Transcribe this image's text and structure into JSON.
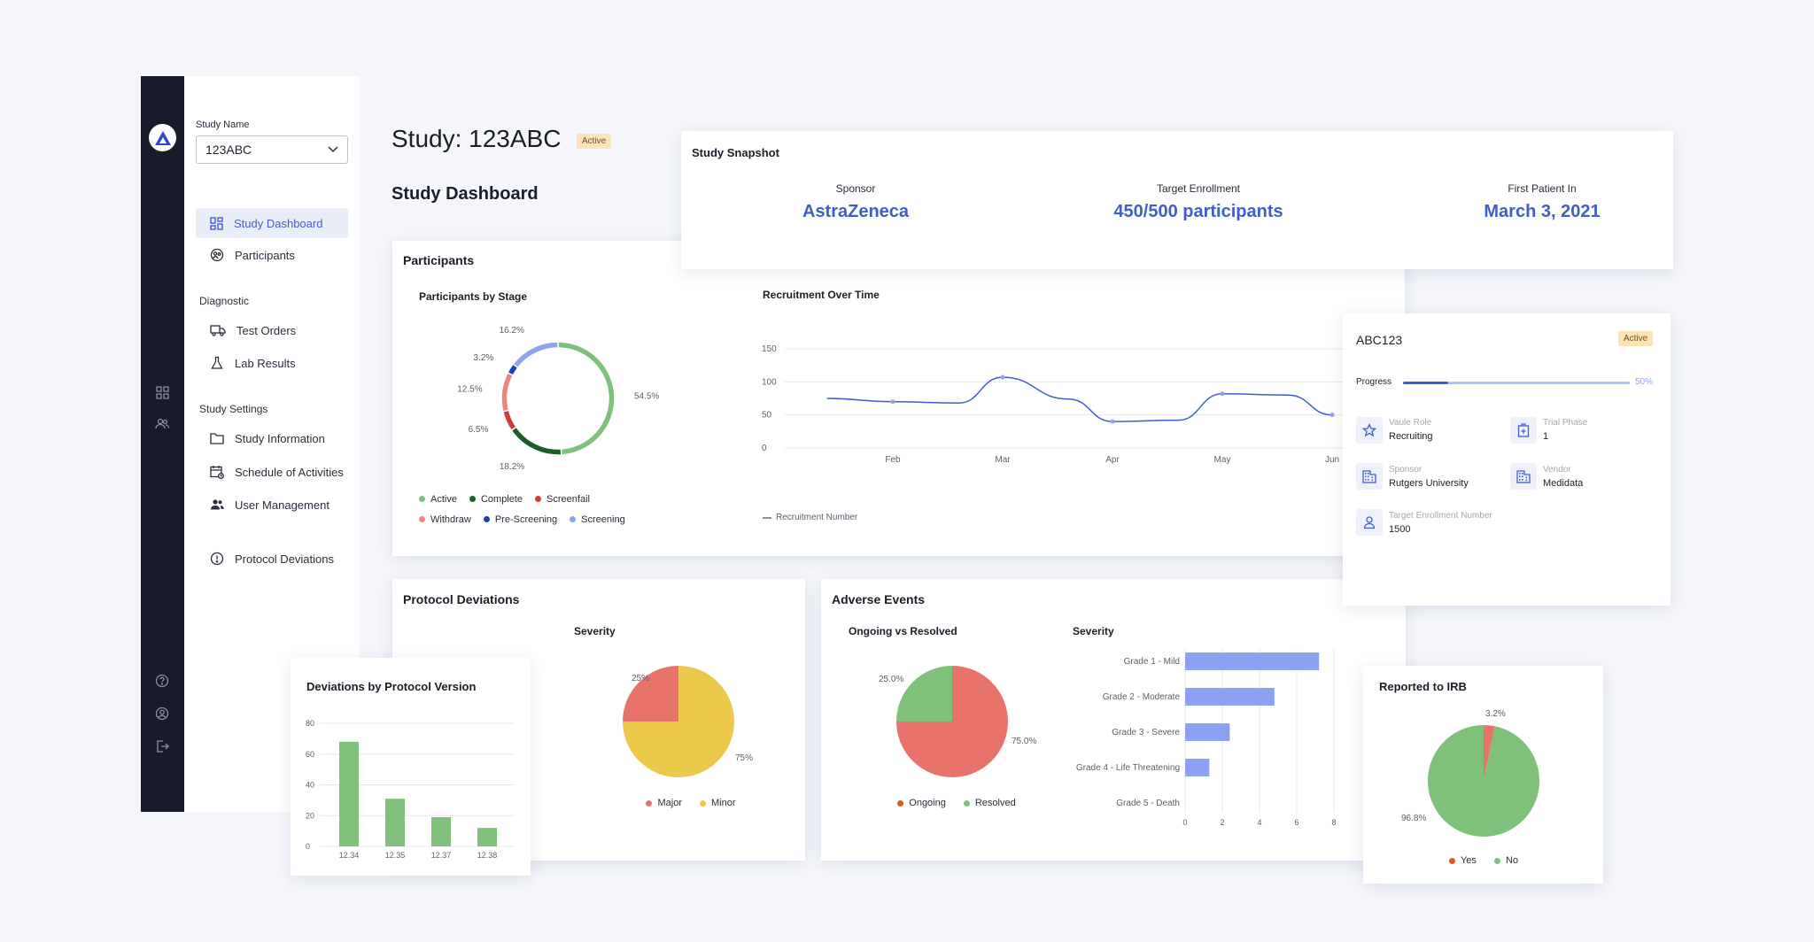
{
  "sidebar": {
    "study_name_label": "Study Name",
    "study_select_value": "123ABC",
    "nav_main": [
      {
        "label": "Study Dashboard",
        "icon": "dashboard-icon"
      },
      {
        "label": "Participants",
        "icon": "participants-icon"
      }
    ],
    "diagnostic_label": "Diagnostic",
    "nav_diagnostic": [
      {
        "label": "Test Orders",
        "icon": "truck-icon"
      },
      {
        "label": "Lab Results",
        "icon": "flask-icon"
      }
    ],
    "settings_label": "Study Settings",
    "nav_settings": [
      {
        "label": "Study Information",
        "icon": "folder-icon"
      },
      {
        "label": "Schedule of Activities",
        "icon": "calendar-icon"
      },
      {
        "label": "User Management",
        "icon": "users-icon"
      }
    ],
    "protocol_deviations": "Protocol Deviations"
  },
  "header": {
    "title": "Study: 123ABC",
    "status": "Active",
    "dashboard_title": "Study Dashboard"
  },
  "snapshot": {
    "title": "Study Snapshot",
    "items": [
      {
        "label": "Sponsor",
        "value": "AstraZeneca"
      },
      {
        "label": "Target Enrollment",
        "value": "450/500 participants"
      },
      {
        "label": "First Patient In",
        "value": "March 3, 2021"
      }
    ]
  },
  "participants": {
    "title": "Participants",
    "by_stage_title": "Participants by Stage",
    "recruitment_title": "Recruitment Over Time",
    "recruitment_legend": "Recruitment Number"
  },
  "study_card": {
    "title": "ABC123",
    "status": "Active",
    "progress_label": "Progress",
    "progress_value": "50%",
    "progress_fraction": 0.5,
    "fields": [
      {
        "key": "Vaule Role",
        "value": "Recruiting",
        "icon": "star-icon"
      },
      {
        "key": "Trial Phase",
        "value": "1",
        "icon": "medical-kit-icon"
      },
      {
        "key": "Sponsor",
        "value": "Rutgers University",
        "icon": "building-icon"
      },
      {
        "key": "Vendor",
        "value": "Medidata",
        "icon": "building-icon"
      },
      {
        "key": "Target Enrollment Number",
        "value": "1500",
        "icon": "person-icon"
      }
    ]
  },
  "protocol_deviations": {
    "title": "Protocol Deviations",
    "severity_title": "Severity"
  },
  "deviations_by_version": {
    "title": "Deviations by Protocol Version"
  },
  "adverse_events": {
    "title": "Adverse Events",
    "ongoing_title": "Ongoing vs Resolved",
    "severity_title": "Severity"
  },
  "irb": {
    "title": "Reported to IRB"
  },
  "colors": {
    "accent": "#3f5ec9",
    "green": "#7fc17a",
    "red": "#e8736a",
    "yellow": "#ebc94b",
    "bar_blue": "#8aa2f0",
    "dark_green": "#1c5e27",
    "navy": "#1d3dbf",
    "salmon": "#e98680",
    "light_blue": "#8ea4ee",
    "crimson": "#cf3e3e"
  },
  "chart_data": [
    {
      "type": "pie",
      "title": "Participants by Stage",
      "donut": true,
      "labels": [
        "Active",
        "Complete",
        "Screenfail",
        "Withdraw",
        "Pre-Screening",
        "Screening"
      ],
      "values": [
        54.5,
        18.2,
        6.5,
        12.5,
        3.2,
        16.2
      ],
      "value_labels": [
        "54.5%",
        "18.2%",
        "6.5%",
        "12.5%",
        "3.2%",
        "16.2%"
      ],
      "colors": [
        "#7fc17a",
        "#1c5e27",
        "#cf3e3e",
        "#e98680",
        "#1d3dbf",
        "#8ea4ee"
      ],
      "legend": "bottom"
    },
    {
      "type": "line",
      "title": "Recruitment Over Time",
      "categories": [
        "Feb",
        "Mar",
        "Apr",
        "May",
        "Jun"
      ],
      "series": [
        {
          "name": "Recruitment Number",
          "x": [
            0.4,
            1,
            1.6,
            2,
            2.6,
            3,
            3.6,
            4,
            4.6,
            5
          ],
          "values": [
            75,
            70,
            68,
            107,
            74,
            40,
            42,
            82,
            80,
            50
          ]
        }
      ],
      "yticks": [
        "150",
        "100",
        "50",
        "0"
      ],
      "ylim": [
        0,
        150
      ],
      "grid": true,
      "legend": "bottom-left"
    },
    {
      "type": "pie",
      "title": "Severity",
      "labels": [
        "Major",
        "Minor"
      ],
      "values": [
        25,
        75
      ],
      "value_labels": [
        "25%",
        "75%"
      ],
      "colors": [
        "#e8736a",
        "#ebc94b"
      ],
      "legend": "bottom"
    },
    {
      "type": "bar",
      "title": "Deviations by Protocol Version",
      "categories": [
        "12.34",
        "12.35",
        "12.37",
        "12.38"
      ],
      "values": [
        68,
        31,
        19,
        12
      ],
      "yticks": [
        "80",
        "60",
        "40",
        "20",
        "0"
      ],
      "ylim": [
        0,
        80
      ],
      "grid": true
    },
    {
      "type": "pie",
      "title": "Ongoing vs Resolved",
      "labels": [
        "Ongoing",
        "Resolved"
      ],
      "values": [
        75,
        25
      ],
      "value_labels": [
        "75.0%",
        "25.0%"
      ],
      "colors": [
        "#e8736a",
        "#7fc17a"
      ],
      "legend_colors": [
        "#e0591d",
        "#7fc17a"
      ],
      "legend": "bottom"
    },
    {
      "type": "bar",
      "orientation": "horizontal",
      "title": "Severity",
      "categories": [
        "Grade 1 - Mild",
        "Grade 2 - Moderate",
        "Grade 3 - Severe",
        "Grade 4 - Life Threatening",
        "Grade 5 - Death"
      ],
      "values": [
        7.2,
        4.8,
        2.4,
        1.3,
        0
      ],
      "xticks": [
        "0",
        "2",
        "4",
        "6",
        "8"
      ],
      "xlim": [
        0,
        8
      ],
      "grid": true
    },
    {
      "type": "pie",
      "title": "Reported to IRB",
      "labels": [
        "Yes",
        "No"
      ],
      "values": [
        3.2,
        96.8
      ],
      "value_labels": [
        "3.2%",
        "96.8%"
      ],
      "colors": [
        "#e8736a",
        "#7fc17a"
      ],
      "legend_colors": [
        "#e0591d",
        "#7fc17a"
      ],
      "legend": "bottom"
    }
  ]
}
